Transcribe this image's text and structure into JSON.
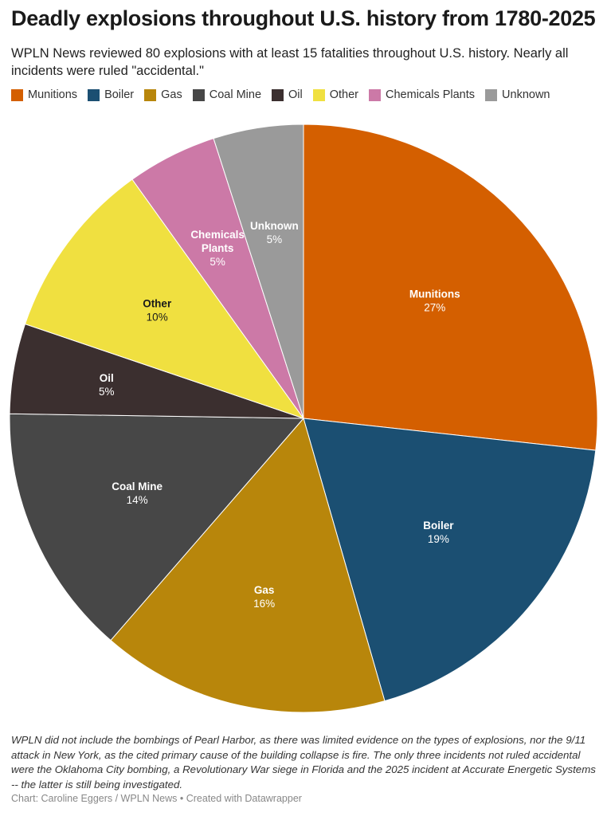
{
  "title": "Deadly explosions throughout U.S. history from 1780-2025",
  "subtitle": "WPLN News reviewed 80 explosions with at least 15 fatalities throughout U.S. history. Nearly all incidents were ruled \"accidental.\"",
  "note": "WPLN did not include the bombings of Pearl Harbor, as there was limited evidence on the types of explosions, nor the 9/11 attack in New York, as the cited primary cause of the building collapse is fire. The only three incidents not ruled accidental were the Oklahoma City bombing, a Revolutionary War siege in Florida and the 2025 incident at Accurate Energetic Systems -- the latter is still being investigated.",
  "credit": "Chart: Caroline Eggers / WPLN News • Created with Datawrapper",
  "chart_data": {
    "type": "pie",
    "legend_position": "top-left",
    "slices": [
      {
        "label": "Munitions",
        "value": 27,
        "display": "27%",
        "color": "#d45f00",
        "text_color": "#ffffff"
      },
      {
        "label": "Boiler",
        "value": 19,
        "display": "19%",
        "color": "#1b4f72",
        "text_color": "#ffffff"
      },
      {
        "label": "Gas",
        "value": 16,
        "display": "16%",
        "color": "#b8860b",
        "text_color": "#ffffff"
      },
      {
        "label": "Coal Mine",
        "value": 14,
        "display": "14%",
        "color": "#474747",
        "text_color": "#ffffff"
      },
      {
        "label": "Oil",
        "value": 5,
        "display": "5%",
        "color": "#3b2f2f",
        "text_color": "#ffffff"
      },
      {
        "label": "Other",
        "value": 10,
        "display": "10%",
        "color": "#f0e040",
        "text_color": "#1a1a1a"
      },
      {
        "label": "Chemicals Plants",
        "label_lines": [
          "Chemicals",
          "Plants"
        ],
        "value": 5,
        "display": "5%",
        "color": "#cc79a7",
        "text_color": "#ffffff"
      },
      {
        "label": "Unknown",
        "value": 5,
        "display": "5%",
        "color": "#9a9a9a",
        "text_color": "#ffffff"
      }
    ]
  }
}
